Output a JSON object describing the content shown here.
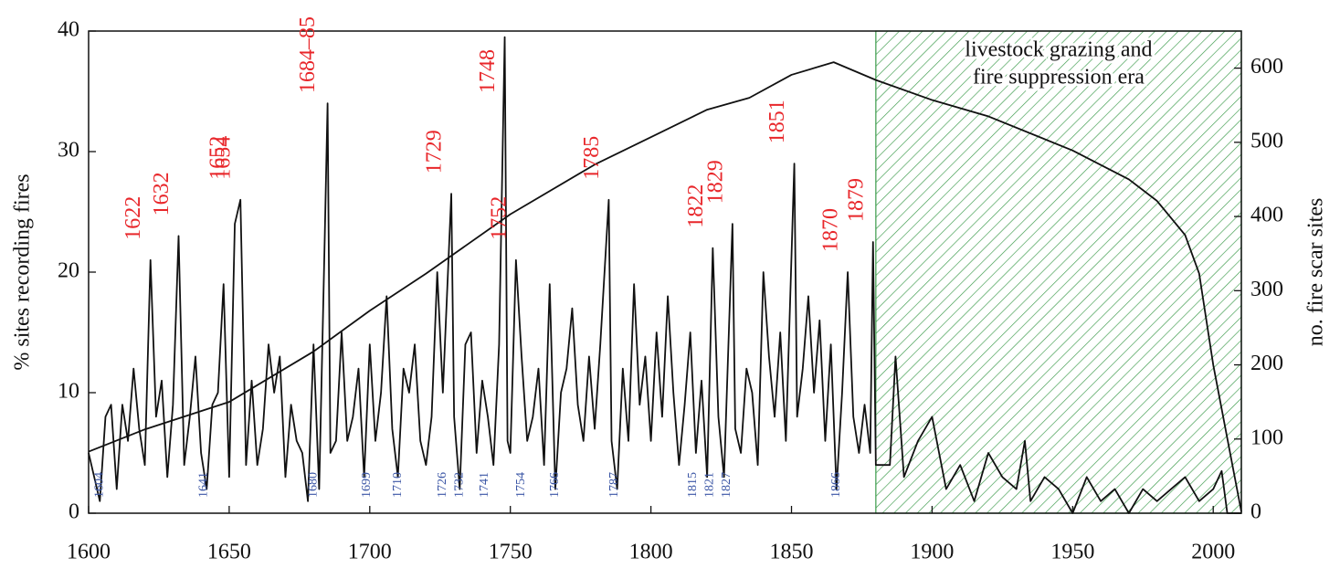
{
  "chart_data": {
    "type": "line",
    "ylabel": "% sites recording fires",
    "y2label": "no. fire scar sites",
    "xlim": [
      1600,
      2010
    ],
    "xticks": [
      1600,
      1650,
      1700,
      1750,
      1800,
      1850,
      1900,
      1950,
      2000
    ],
    "ylim": [
      0,
      40
    ],
    "yticks": [
      0,
      10,
      20,
      30,
      40
    ],
    "y2lim": [
      0,
      650
    ],
    "y2ticks": [
      0,
      100,
      200,
      300,
      400,
      500,
      600
    ],
    "shade": {
      "from": 1880,
      "to": 2010,
      "color": "#3a9a4a",
      "label": [
        "livestock grazing and",
        "fire suppression era"
      ]
    },
    "series": [
      {
        "color": "#111111",
        "x": [
          1600,
          1602,
          1604,
          1606,
          1608,
          1610,
          1612,
          1614,
          1616,
          1618,
          1620,
          1622,
          1624,
          1626,
          1628,
          1630,
          1632,
          1634,
          1636,
          1638,
          1640,
          1642,
          1644,
          1646,
          1648,
          1650,
          1652,
          1654,
          1656,
          1658,
          1660,
          1662,
          1664,
          1666,
          1668,
          1670,
          1672,
          1674,
          1676,
          1678,
          1680,
          1682,
          1684,
          1685,
          1686,
          1688,
          1690,
          1692,
          1694,
          1696,
          1698,
          1700,
          1702,
          1704,
          1706,
          1708,
          1710,
          1712,
          1714,
          1716,
          1718,
          1720,
          1722,
          1724,
          1726,
          1729,
          1730,
          1732,
          1734,
          1736,
          1738,
          1740,
          1742,
          1744,
          1746,
          1748,
          1749,
          1750,
          1752,
          1754,
          1756,
          1758,
          1760,
          1762,
          1764,
          1766,
          1768,
          1770,
          1772,
          1774,
          1776,
          1778,
          1780,
          1782,
          1785,
          1786,
          1788,
          1790,
          1792,
          1794,
          1796,
          1798,
          1800,
          1802,
          1804,
          1806,
          1808,
          1810,
          1812,
          1814,
          1816,
          1818,
          1820,
          1822,
          1824,
          1826,
          1829,
          1830,
          1832,
          1834,
          1836,
          1838,
          1840,
          1842,
          1844,
          1846,
          1848,
          1851,
          1852,
          1854,
          1856,
          1858,
          1860,
          1862,
          1864,
          1866,
          1868,
          1870,
          1872,
          1874,
          1876,
          1878,
          1879,
          1880,
          1885,
          1887,
          1890,
          1895,
          1900,
          1905,
          1910,
          1915,
          1920,
          1925,
          1930,
          1933,
          1935,
          1940,
          1945,
          1950,
          1955,
          1960,
          1965,
          1970,
          1975,
          1980,
          1985,
          1990,
          1995,
          2000,
          2003,
          2005,
          2010
        ],
        "values": [
          5,
          3,
          1,
          8,
          9,
          2,
          9,
          6,
          12,
          7,
          4,
          21,
          8,
          11,
          3,
          9,
          23,
          4,
          8,
          13,
          5,
          2,
          9,
          10,
          19,
          3,
          24,
          26,
          4,
          11,
          4,
          7,
          14,
          10,
          13,
          3,
          9,
          6,
          5,
          1,
          14,
          2,
          23,
          34,
          5,
          6,
          15,
          6,
          8,
          12,
          3,
          14,
          6,
          10,
          18,
          7,
          3,
          12,
          10,
          14,
          6,
          4,
          8,
          20,
          10,
          26.5,
          8,
          2,
          14,
          15,
          5,
          11,
          8,
          4,
          14,
          39.5,
          6,
          5,
          21,
          13,
          6,
          8,
          12,
          4,
          19,
          2,
          10,
          12,
          17,
          9,
          6,
          13,
          7,
          14,
          26,
          6,
          2,
          12,
          6,
          19,
          9,
          13,
          6,
          15,
          8,
          18,
          10,
          4,
          9,
          15,
          5,
          11,
          3,
          22,
          8,
          3,
          24,
          7,
          5,
          12,
          10,
          4,
          20,
          13,
          8,
          15,
          6,
          29,
          8,
          12,
          18,
          10,
          16,
          6,
          14,
          2,
          10,
          20,
          8,
          5,
          9,
          5,
          22.5,
          4,
          4,
          13,
          3,
          6,
          8,
          2,
          4,
          1,
          5,
          3,
          2,
          6,
          1,
          3,
          2,
          0,
          3,
          1,
          2,
          0,
          2,
          1,
          2,
          3,
          1,
          2,
          3.5,
          0,
          0
        ]
      },
      {
        "color": "#111111",
        "axis": "y2",
        "x": [
          1600,
          1620,
          1650,
          1680,
          1700,
          1720,
          1750,
          1780,
          1800,
          1820,
          1835,
          1850,
          1865,
          1880,
          1900,
          1920,
          1950,
          1970,
          1980,
          1990,
          1995,
          2000,
          2005,
          2010
        ],
        "values": [
          83,
          113,
          150,
          218,
          273,
          323,
          403,
          470,
          507,
          544,
          560,
          591,
          608,
          584,
          557,
          535,
          489,
          450,
          421,
          375,
          323,
          200,
          101,
          2
        ]
      }
    ],
    "annotations": {
      "color": "#e8262a",
      "items": [
        {
          "label": "1622",
          "x": 1622
        },
        {
          "label": "1632",
          "x": 1632
        },
        {
          "label": "1652",
          "x": 1652
        },
        {
          "label": "1654",
          "x": 1654
        },
        {
          "label": "1684–85",
          "x": 1684
        },
        {
          "label": "1729",
          "x": 1729
        },
        {
          "label": "1748",
          "x": 1748
        },
        {
          "label": "1752",
          "x": 1752
        },
        {
          "label": "1785",
          "x": 1785
        },
        {
          "label": "1822",
          "x": 1822
        },
        {
          "label": "1829",
          "x": 1829
        },
        {
          "label": "1851",
          "x": 1851
        },
        {
          "label": "1870",
          "x": 1870
        },
        {
          "label": "1879",
          "x": 1879
        }
      ]
    },
    "minor_annotations": {
      "color": "#3a55a5",
      "items": [
        {
          "label": "1604",
          "x": 1604
        },
        {
          "label": "1641",
          "x": 1641
        },
        {
          "label": "1680",
          "x": 1680
        },
        {
          "label": "1699",
          "x": 1699
        },
        {
          "label": "1710",
          "x": 1710
        },
        {
          "label": "1726",
          "x": 1726
        },
        {
          "label": "1732",
          "x": 1732
        },
        {
          "label": "1741",
          "x": 1741
        },
        {
          "label": "1754",
          "x": 1754
        },
        {
          "label": "1766",
          "x": 1766
        },
        {
          "label": "1787",
          "x": 1787
        },
        {
          "label": "1815",
          "x": 1815
        },
        {
          "label": "1821",
          "x": 1821
        },
        {
          "label": "1827",
          "x": 1827
        },
        {
          "label": "1866",
          "x": 1866
        }
      ]
    }
  }
}
